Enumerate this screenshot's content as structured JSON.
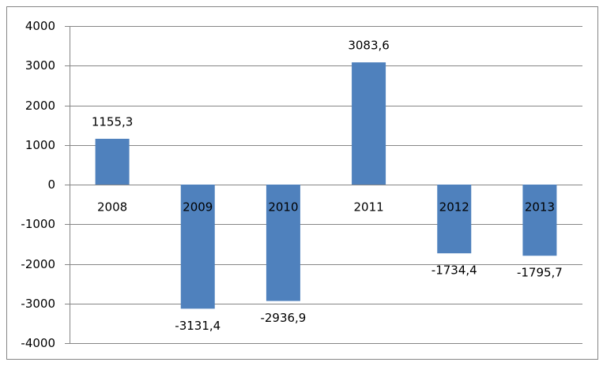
{
  "chart_data": {
    "type": "bar",
    "categories": [
      "2008",
      "2009",
      "2010",
      "2011",
      "2012",
      "2013"
    ],
    "values": [
      1155.3,
      -3131.4,
      -2936.9,
      3083.6,
      -1734.4,
      -1795.7
    ],
    "value_labels": [
      "1155,3",
      "-3131,4",
      "-2936,9",
      "3083,6",
      "-1734,4",
      "-1795,7"
    ],
    "color": "#4f81bd",
    "ylim": [
      -4000,
      4000
    ],
    "yticks": [
      -4000,
      -3000,
      -2000,
      -1000,
      0,
      1000,
      2000,
      3000,
      4000
    ],
    "grid": true
  }
}
